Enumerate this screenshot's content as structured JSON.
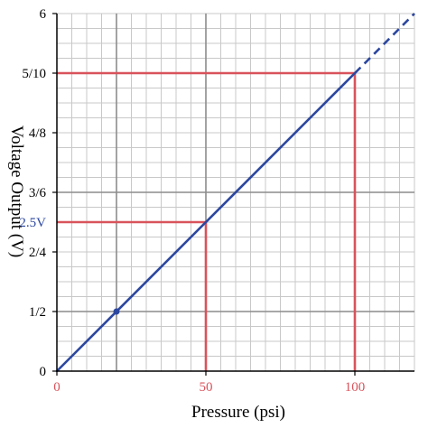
{
  "chart_data": {
    "type": "line",
    "xlabel": "Pressure (psi)",
    "ylabel": "Voltage Output (V)",
    "xlim": [
      0,
      120
    ],
    "ylim": [
      0,
      6
    ],
    "grid": true,
    "minor_grid": true,
    "x_ticks": [
      {
        "value": 0,
        "label": "0"
      },
      {
        "value": 50,
        "label": "50"
      },
      {
        "value": 100,
        "label": "100"
      }
    ],
    "y_ticks": [
      {
        "value": 0,
        "label": "0"
      },
      {
        "value": 1,
        "label": "1/2"
      },
      {
        "value": 2,
        "label": "2/4"
      },
      {
        "value": 3,
        "label": "3/6"
      },
      {
        "value": 4,
        "label": "4/8"
      },
      {
        "value": 5,
        "label": "5/10"
      },
      {
        "value": 6,
        "label": "6"
      }
    ],
    "highlight_tick": {
      "value": 2.5,
      "label": "2.5V"
    },
    "series": [
      {
        "color": "#2c47a0",
        "solid": {
          "x": [
            0,
            100
          ],
          "y": [
            0,
            5
          ]
        },
        "dashed": {
          "x": [
            100,
            120
          ],
          "y": [
            5,
            6
          ]
        }
      }
    ],
    "markers": [
      {
        "x": 20,
        "y": 1,
        "color": "#2c47a0"
      }
    ],
    "reference_lines": [
      {
        "x": 50,
        "y": 2.5,
        "color": "#d9535b"
      },
      {
        "x": 100,
        "y": 5,
        "color": "#d9535b"
      }
    ],
    "major_grid_x": [
      20,
      50
    ],
    "major_grid_y": [
      1,
      3
    ],
    "colors": {
      "line": "#2c47a0",
      "reference": "#d9535b",
      "x_tick_text": "#d9535b",
      "highlight_tick_text": "#2c47a0",
      "minor_grid": "#c8c8c8",
      "major_grid": "#8c8c8c",
      "axis": "#000000"
    }
  }
}
